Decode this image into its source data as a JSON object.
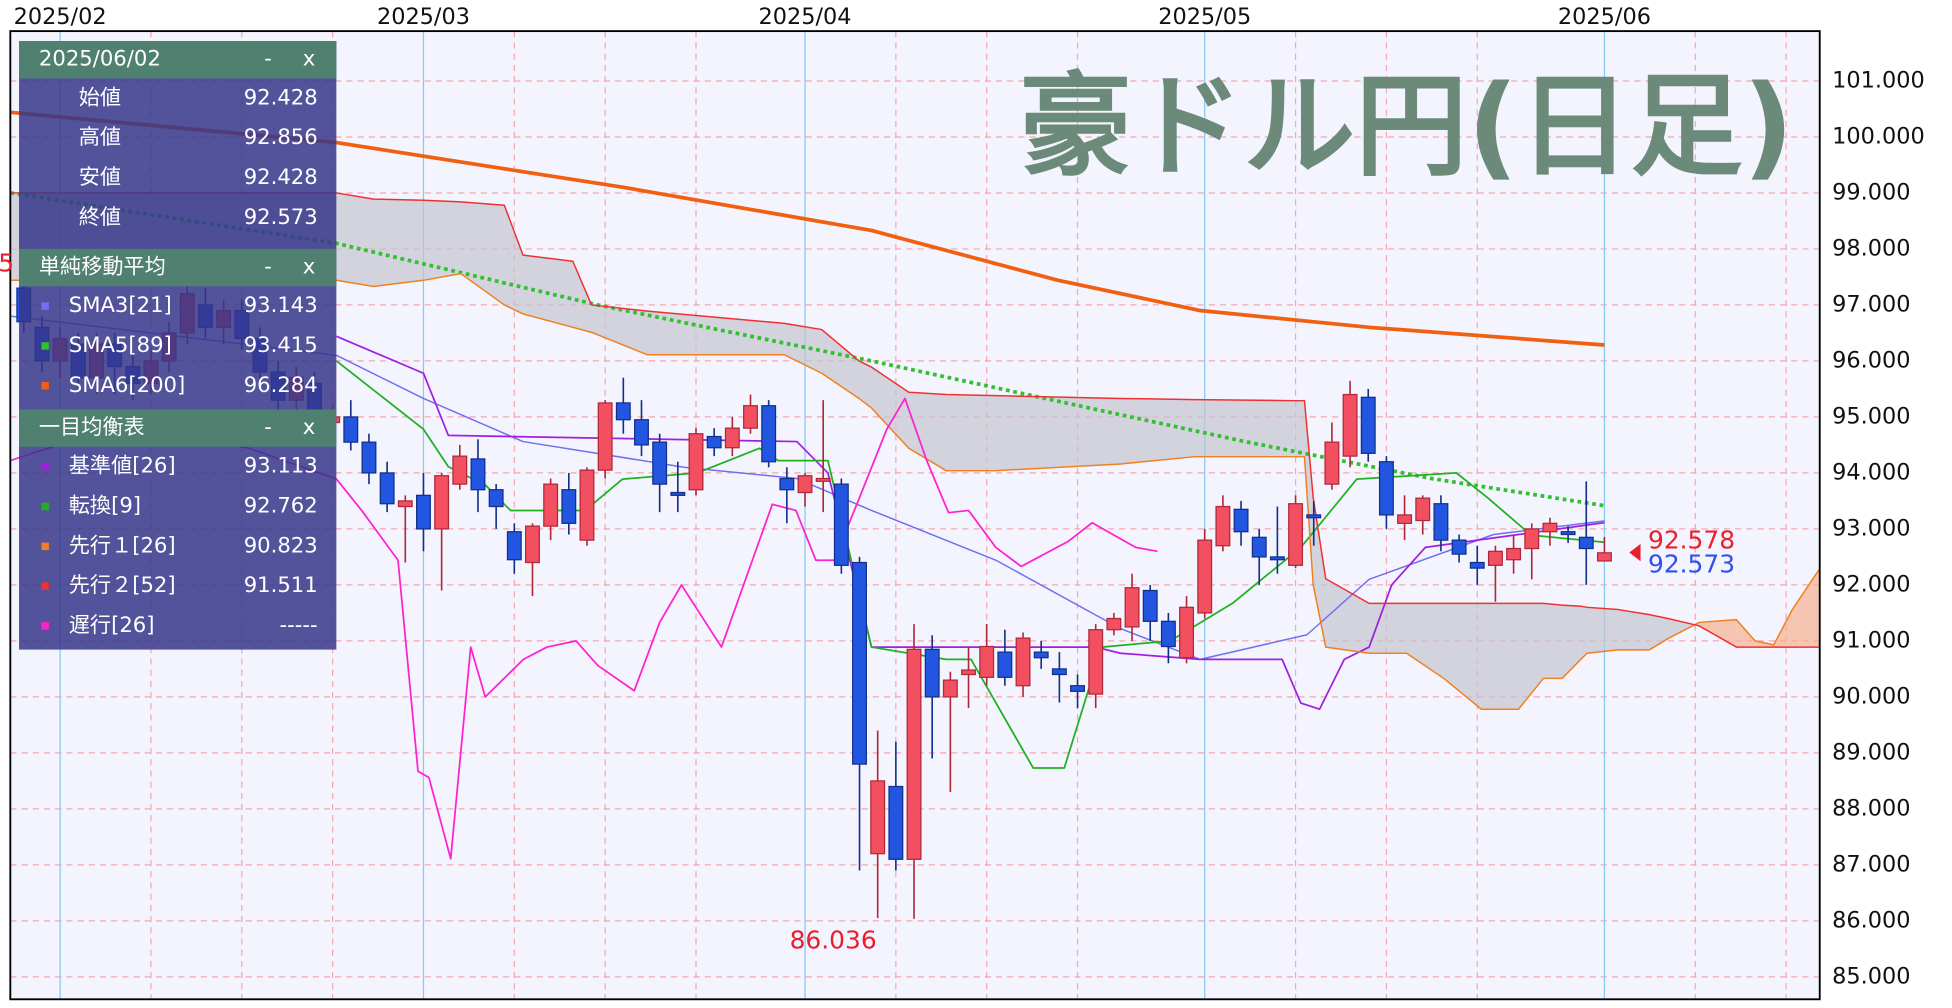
{
  "chart_data": {
    "type": "candlestick",
    "title": "豪ドル円(日足)",
    "xlim": [
      -2.74,
      96.85
    ],
    "xticks": [
      {
        "value": 0,
        "label": "2025/02"
      },
      {
        "value": 20,
        "label": "2025/03"
      },
      {
        "value": 41,
        "label": "2025/04"
      },
      {
        "value": 63,
        "label": "2025/05"
      },
      {
        "value": 85,
        "label": "2025/06"
      }
    ],
    "xgrid": [
      5,
      10,
      15,
      25,
      30,
      35,
      46,
      51,
      56,
      68,
      73,
      78,
      90,
      95
    ],
    "ylim": [
      84.6,
      101.89
    ],
    "yticks": [
      {
        "value": 85,
        "label": "85.000"
      },
      {
        "value": 86,
        "label": "86.000"
      },
      {
        "value": 87,
        "label": "87.000"
      },
      {
        "value": 88,
        "label": "88.000"
      },
      {
        "value": 89,
        "label": "89.000"
      },
      {
        "value": 90,
        "label": "90.000"
      },
      {
        "value": 91,
        "label": "91.000"
      },
      {
        "value": 92,
        "label": "92.000"
      },
      {
        "value": 93,
        "label": "93.000"
      },
      {
        "value": 94,
        "label": "94.000"
      },
      {
        "value": 95,
        "label": "95.000"
      },
      {
        "value": 96,
        "label": "96.000"
      },
      {
        "value": 97,
        "label": "97.000"
      },
      {
        "value": 98,
        "label": "98.000"
      },
      {
        "value": 99,
        "label": "99.000"
      },
      {
        "value": 100,
        "label": "100.000"
      },
      {
        "value": 101,
        "label": "101.000"
      }
    ],
    "grid": true,
    "up_color": "#f25060",
    "down_color": "#2255e0",
    "x": [
      -2,
      -1,
      0,
      1,
      2,
      3,
      4,
      5,
      6,
      7,
      8,
      9,
      10,
      11,
      12,
      13,
      14,
      15,
      16,
      17,
      18,
      19,
      20,
      21,
      22,
      23,
      24,
      25,
      26,
      27,
      28,
      29,
      30,
      31,
      32,
      33,
      34,
      35,
      36,
      37,
      38,
      39,
      40,
      41,
      42,
      43,
      44,
      45,
      46,
      47,
      48,
      49,
      50,
      51,
      52,
      53,
      54,
      55,
      56,
      57,
      58,
      59,
      60,
      61,
      62,
      63,
      64,
      65,
      66,
      67,
      68,
      69,
      70,
      71,
      72,
      73,
      74,
      75,
      76,
      77,
      78,
      79,
      80,
      81,
      82,
      83,
      84,
      85
    ],
    "open": [
      97.3,
      96.6,
      96.0,
      96.3,
      95.7,
      96.3,
      95.9,
      95.6,
      96.0,
      96.5,
      97.0,
      96.6,
      96.9,
      96.4,
      95.8,
      95.3,
      95.6,
      94.9,
      95.0,
      94.55,
      94.0,
      93.4,
      93.6,
      93.0,
      93.8,
      94.25,
      93.7,
      92.95,
      92.4,
      93.05,
      93.7,
      92.8,
      94.05,
      95.25,
      94.95,
      94.55,
      93.65,
      93.7,
      94.65,
      94.45,
      94.8,
      95.2,
      93.9,
      93.65,
      93.85,
      93.8,
      92.4,
      87.2,
      88.4,
      87.1,
      90.85,
      90.0,
      90.4,
      90.35,
      90.8,
      90.2,
      90.8,
      90.5,
      90.2,
      90.05,
      91.2,
      91.25,
      91.9,
      91.35,
      90.7,
      91.5,
      92.7,
      93.35,
      92.85,
      92.5,
      92.35,
      93.25,
      93.8,
      94.3,
      95.35,
      94.2,
      93.1,
      93.15,
      93.45,
      92.8,
      92.4,
      92.35,
      92.45,
      92.65,
      92.95,
      92.95,
      92.85,
      92.428
    ],
    "high": [
      97.5,
      96.8,
      96.6,
      96.5,
      96.5,
      96.5,
      96.1,
      96.2,
      96.7,
      97.4,
      97.3,
      97.1,
      97.1,
      96.6,
      96.0,
      95.9,
      95.8,
      95.2,
      95.3,
      94.7,
      94.2,
      93.6,
      94.0,
      94.0,
      94.5,
      94.6,
      93.8,
      93.1,
      93.1,
      93.9,
      94.0,
      94.1,
      95.3,
      95.7,
      95.3,
      94.7,
      94.2,
      94.8,
      94.8,
      95.0,
      95.4,
      95.3,
      94.1,
      94.0,
      95.3,
      93.9,
      92.5,
      89.4,
      89.2,
      91.3,
      91.1,
      90.45,
      90.9,
      91.3,
      91.2,
      91.15,
      91.0,
      90.8,
      90.4,
      91.3,
      91.5,
      92.2,
      92.0,
      91.5,
      91.8,
      93.0,
      93.6,
      93.5,
      93.0,
      93.4,
      93.6,
      93.5,
      94.9,
      95.644,
      95.5,
      94.3,
      93.6,
      93.6,
      93.6,
      92.9,
      92.7,
      92.7,
      92.9,
      93.1,
      93.2,
      93.05,
      93.85,
      92.856
    ],
    "low": [
      96.5,
      95.8,
      95.7,
      95.5,
      95.4,
      95.4,
      95.3,
      95.4,
      95.8,
      96.3,
      96.4,
      96.3,
      96.2,
      95.6,
      95.1,
      95.1,
      94.8,
      94.7,
      94.4,
      93.8,
      93.3,
      92.4,
      92.6,
      91.9,
      93.7,
      93.3,
      93.0,
      92.2,
      91.8,
      92.8,
      92.9,
      92.7,
      93.9,
      94.7,
      94.3,
      93.3,
      93.3,
      93.6,
      94.3,
      94.3,
      94.7,
      94.1,
      93.1,
      93.4,
      93.3,
      92.2,
      86.9,
      86.05,
      86.9,
      86.036,
      88.9,
      88.3,
      89.8,
      90.2,
      90.2,
      90.0,
      90.5,
      89.9,
      89.8,
      89.8,
      91.1,
      91.0,
      91.0,
      90.6,
      90.6,
      91.4,
      92.6,
      92.7,
      92.0,
      92.2,
      92.3,
      92.7,
      93.7,
      94.1,
      94.2,
      93.0,
      92.8,
      92.9,
      92.6,
      92.4,
      92.0,
      91.7,
      92.2,
      92.1,
      92.7,
      92.75,
      92.0,
      92.428
    ],
    "close": [
      96.7,
      96.0,
      96.4,
      95.7,
      96.3,
      95.9,
      95.6,
      96.0,
      96.5,
      97.2,
      96.6,
      96.9,
      96.4,
      95.8,
      95.3,
      95.7,
      95.0,
      95.0,
      94.55,
      94.0,
      93.45,
      93.5,
      93.0,
      93.95,
      94.3,
      93.7,
      93.4,
      92.45,
      93.05,
      93.8,
      93.1,
      94.05,
      95.25,
      94.95,
      94.5,
      93.8,
      93.6,
      94.7,
      94.45,
      94.8,
      95.2,
      94.2,
      93.7,
      93.95,
      93.9,
      92.35,
      88.8,
      88.5,
      87.1,
      90.85,
      90.0,
      90.3,
      90.48,
      90.9,
      90.35,
      91.05,
      90.7,
      90.4,
      90.1,
      91.2,
      91.4,
      91.95,
      91.35,
      90.9,
      91.6,
      92.8,
      93.4,
      92.95,
      92.5,
      92.45,
      93.45,
      93.2,
      94.55,
      95.4,
      94.35,
      93.25,
      93.25,
      93.55,
      92.8,
      92.55,
      92.3,
      92.6,
      92.65,
      93.0,
      93.1,
      92.9,
      92.65,
      92.573
    ],
    "ohlc_date": "2025/06/02",
    "ohlc_labels": [
      "始値",
      "高値",
      "安値",
      "終値"
    ],
    "panel_controls": [
      "-",
      "x"
    ],
    "cloud_colors": {
      "bear": "#c4c4d0",
      "bull": "#f6b090"
    },
    "groups": [
      {
        "title": "単純移動平均",
        "series": [
          {
            "name": "SMA3[21]",
            "color": "#7070f0",
            "width": 1.2,
            "current": 93.143,
            "x": [
              -2.74,
              15.21,
              20.0,
              25.48,
              34.38,
              40.55,
              44.66,
              51.51,
              58.36,
              62.75,
              68.63,
              72.05,
              78.9,
              85
            ],
            "values": [
              96.8,
              96.1,
              95.33,
              94.56,
              94.1,
              93.9,
              93.33,
              92.44,
              91.22,
              90.67,
              91.11,
              92.1,
              92.9,
              93.143
            ]
          },
          {
            "name": "SMA5[89]",
            "color": "#30c030",
            "width": 3,
            "dashed": true,
            "current": 93.415,
            "x": [
              -2.74,
              15.21,
              29.59,
              44.66,
              65.21,
              75.48,
              85
            ],
            "values": [
              99.0,
              98.1,
              97.0,
              96.0,
              94.56,
              93.9,
              93.415
            ]
          },
          {
            "name": "SMA6[200]",
            "color": "#f06010",
            "width": 3,
            "current": 96.284,
            "x": [
              -2.74,
              15.21,
              31.0,
              44.66,
              54.93,
              62.75,
              72.05,
              85
            ],
            "values": [
              100.44,
              99.9,
              99.1,
              98.33,
              97.44,
              96.9,
              96.6,
              96.284
            ]
          }
        ]
      },
      {
        "title": "一目均衡表",
        "series": [
          {
            "name": "基準値[26]",
            "color": "#a020e0",
            "width": 1.4,
            "current": 93.113,
            "x": [
              15.21,
              20.0,
              21.37,
              40.55,
              42.26,
              44.66,
              56.99,
              58.36,
              62.75,
              67.26,
              68.29,
              69.32,
              70.68,
              72.05,
              73.29,
              75.14,
              85
            ],
            "values": [
              96.44,
              95.78,
              94.67,
              94.56,
              94.0,
              90.89,
              90.89,
              90.78,
              90.67,
              90.67,
              89.89,
              89.78,
              90.67,
              90.89,
              92.0,
              92.67,
              93.113
            ]
          },
          {
            "name": "転換[9]",
            "color": "#20b020",
            "width": 1.4,
            "current": 92.762,
            "x": [
              15.21,
              20.0,
              21.37,
              23.42,
              24.79,
              28.9,
              30.96,
              35.07,
              38.49,
              39.52,
              42.26,
              44.66,
              48.77,
              50.14,
              53.56,
              55.27,
              57.33,
              61.1,
              64.52,
              68.29,
              71.37,
              76.85,
              78.56,
              80.96,
              85
            ],
            "values": [
              96.0,
              94.78,
              94.11,
              93.78,
              93.33,
              93.33,
              93.89,
              94.0,
              94.44,
              94.22,
              94.22,
              90.89,
              90.67,
              90.67,
              88.73,
              88.73,
              90.89,
              91.0,
              91.67,
              92.67,
              93.89,
              94.0,
              93.56,
              92.89,
              92.762
            ]
          },
          {
            "name": "先行１[26]",
            "color": "#f08020",
            "width": 1.2,
            "current": 90.823,
            "x": [
              -2.74,
              15.21,
              17.26,
              20.0,
              22.05,
              24.45,
              25.48,
              28.22,
              29.25,
              32.33,
              39.86,
              41.92,
              43.97,
              44.66,
              46.71,
              48.77,
              51.51,
              58.36,
              62.47,
              67.95,
              68.49,
              68.97,
              69.66,
              72.05,
              74.11,
              76.16,
              78.22,
              80.27,
              81.64,
              82.67,
              83.7,
              84.04,
              85.75,
              87.47,
              88.49,
              90.21,
              92.26,
              93.29,
              94.32,
              95.34,
              96.85
            ],
            "values": [
              97.44,
              97.44,
              97.33,
              97.44,
              97.56,
              97.0,
              96.84,
              96.6,
              96.51,
              96.11,
              96.11,
              95.78,
              95.33,
              95.16,
              94.44,
              94.04,
              94.04,
              94.16,
              94.29,
              94.29,
              94.29,
              92.0,
              90.89,
              90.78,
              90.78,
              90.33,
              89.78,
              89.78,
              90.33,
              90.33,
              90.67,
              90.78,
              90.84,
              90.84,
              91.04,
              91.33,
              91.38,
              91.0,
              90.93,
              91.56,
              92.29
            ]
          },
          {
            "name": "先行２[52]",
            "color": "#f03030",
            "width": 1.2,
            "current": 91.511,
            "x": [
              -2.74,
              15.21,
              17.26,
              20.0,
              22.05,
              24.45,
              25.48,
              28.22,
              29.25,
              32.33,
              39.86,
              41.92,
              43.97,
              44.66,
              46.71,
              48.77,
              51.51,
              58.36,
              62.47,
              67.95,
              68.49,
              68.97,
              69.66,
              72.05,
              74.11,
              76.16,
              78.22,
              80.27,
              81.64,
              82.67,
              83.7,
              84.04,
              85.75,
              87.47,
              88.49,
              90.21,
              92.26,
              93.29,
              94.32,
              95.34,
              96.85
            ],
            "values": [
              99.0,
              99.0,
              98.89,
              98.87,
              98.84,
              98.78,
              97.89,
              97.78,
              97.0,
              96.89,
              96.67,
              96.56,
              96.0,
              95.89,
              95.44,
              95.4,
              95.38,
              95.33,
              95.31,
              95.29,
              95.29,
              93.56,
              92.11,
              91.67,
              91.67,
              91.67,
              91.67,
              91.67,
              91.67,
              91.64,
              91.62,
              91.6,
              91.56,
              91.47,
              91.4,
              91.27,
              90.89,
              90.89,
              90.89,
              90.89,
              90.89
            ]
          },
          {
            "name": "遅行[26]",
            "color": "#ff20d0",
            "width": 1.4,
            "current": "-----",
            "x": [
              -2.74,
              3.6,
              10.4,
              15.21,
              16.6,
              18.6,
              19.7,
              20.3,
              21.5,
              22.6,
              23.4,
              25.5,
              26.8,
              28.4,
              29.6,
              31.6,
              33.0,
              34.2,
              36.4,
              39.2,
              40.5,
              41.6,
              42.6,
              44.0,
              45.5,
              46.5,
              47.7,
              48.9,
              50.0,
              51.5,
              52.9,
              55.5,
              56.8,
              59.2,
              60.4
            ],
            "values": [
              94.22,
              94.89,
              94.44,
              93.89,
              93.33,
              92.44,
              88.67,
              88.56,
              87.11,
              90.89,
              90.0,
              90.67,
              90.89,
              91.0,
              90.56,
              90.11,
              91.33,
              92.0,
              90.89,
              93.44,
              93.33,
              92.44,
              92.44,
              93.56,
              94.78,
              95.33,
              94.22,
              93.29,
              93.33,
              92.67,
              92.33,
              92.78,
              93.11,
              92.67,
              92.6
            ]
          }
        ]
      }
    ],
    "price_markers": [
      {
        "value": 92.578,
        "color": "#e8202c"
      },
      {
        "value": 92.573,
        "color": "#3050e8"
      }
    ],
    "annotation_color": "#e8202c"
  }
}
